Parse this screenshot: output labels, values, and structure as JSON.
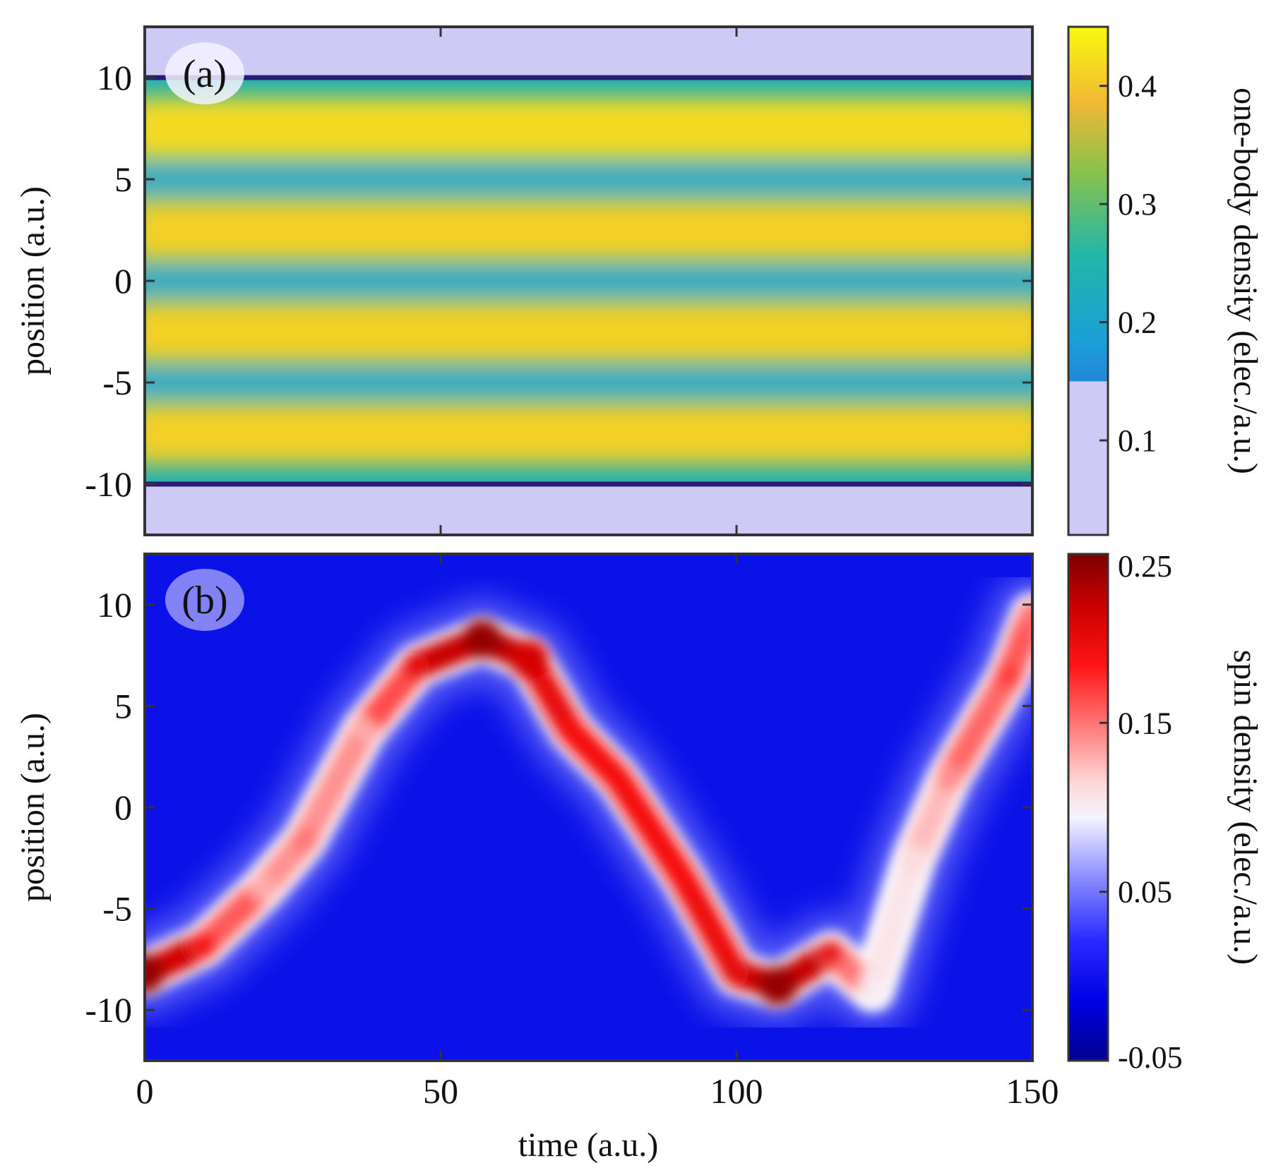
{
  "chart_data": [
    {
      "panel": "(a)",
      "type": "heatmap",
      "xlabel": "time (a.u.)",
      "ylabel": "position (a.u.)",
      "xlim": [
        0,
        150
      ],
      "ylim": [
        -12.5,
        12.5
      ],
      "x_ticks": [
        0,
        50,
        100,
        150
      ],
      "y_ticks": [
        10,
        5,
        0,
        -5,
        -10
      ],
      "y_tick_labels": [
        "10",
        "5",
        "0",
        "-5",
        "-10"
      ],
      "colorbar": {
        "label": "one-body density (elec./a.u.)",
        "range": [
          0.02,
          0.45
        ],
        "ticks": [
          0.4,
          0.3,
          0.2,
          0.1
        ],
        "tick_labels": [
          "0.4",
          "0.3",
          "0.2",
          "0.1"
        ],
        "below_threshold": 0.15,
        "below_color": "#cdcbf5",
        "colormap": "parula"
      },
      "density_bands": [
        {
          "center": 7.5,
          "value": 0.42
        },
        {
          "center": 2.5,
          "value": 0.41
        },
        {
          "center": -2.5,
          "value": 0.41
        },
        {
          "center": -7.5,
          "value": 0.41
        }
      ],
      "density_gaps": [
        {
          "center": 5.0,
          "value": 0.24
        },
        {
          "center": 0.0,
          "value": 0.24
        },
        {
          "center": -5.0,
          "value": 0.24
        }
      ],
      "support_edge": [
        -10,
        10
      ]
    },
    {
      "panel": "(b)",
      "type": "heatmap",
      "xlabel": "time (a.u.)",
      "ylabel": "position (a.u.)",
      "xlim": [
        0,
        150
      ],
      "ylim": [
        -12.5,
        12.5
      ],
      "x_ticks": [
        0,
        50,
        100,
        150
      ],
      "x_tick_labels": [
        "0",
        "50",
        "100",
        "150"
      ],
      "y_ticks": [
        10,
        5,
        0,
        -5,
        -10
      ],
      "y_tick_labels": [
        "10",
        "5",
        "0",
        "-5",
        "-10"
      ],
      "colorbar": {
        "label": "spin density (elec./a.u.)",
        "range": [
          -0.05,
          0.25
        ],
        "ticks": [
          0.25,
          0.15,
          0.05,
          -0.05
        ],
        "tick_labels": [
          "0.25",
          "0.15",
          "0.05",
          "-0.05"
        ],
        "colormap": "blue-white-red"
      },
      "spin_path": [
        {
          "t": 0,
          "pos": -8.2,
          "value": 0.24
        },
        {
          "t": 10,
          "pos": -6.8,
          "value": 0.19
        },
        {
          "t": 20,
          "pos": -4.0,
          "value": 0.13
        },
        {
          "t": 27,
          "pos": -1.6,
          "value": 0.15
        },
        {
          "t": 37,
          "pos": 3.8,
          "value": 0.13
        },
        {
          "t": 46,
          "pos": 7.0,
          "value": 0.2
        },
        {
          "t": 57,
          "pos": 8.3,
          "value": 0.24
        },
        {
          "t": 65,
          "pos": 7.3,
          "value": 0.21
        },
        {
          "t": 72,
          "pos": 3.8,
          "value": 0.19
        },
        {
          "t": 80,
          "pos": 1.4,
          "value": 0.19
        },
        {
          "t": 91,
          "pos": -3.5,
          "value": 0.19
        },
        {
          "t": 100,
          "pos": -8.2,
          "value": 0.2
        },
        {
          "t": 107,
          "pos": -8.8,
          "value": 0.24
        },
        {
          "t": 116,
          "pos": -7.2,
          "value": 0.2
        },
        {
          "t": 123,
          "pos": -9.0,
          "value": 0.1
        },
        {
          "t": 130,
          "pos": -2.5,
          "value": 0.11
        },
        {
          "t": 136,
          "pos": 1.5,
          "value": 0.14
        },
        {
          "t": 146,
          "pos": 6.5,
          "value": 0.17
        },
        {
          "t": 150,
          "pos": 9.5,
          "value": 0.15
        }
      ]
    }
  ]
}
